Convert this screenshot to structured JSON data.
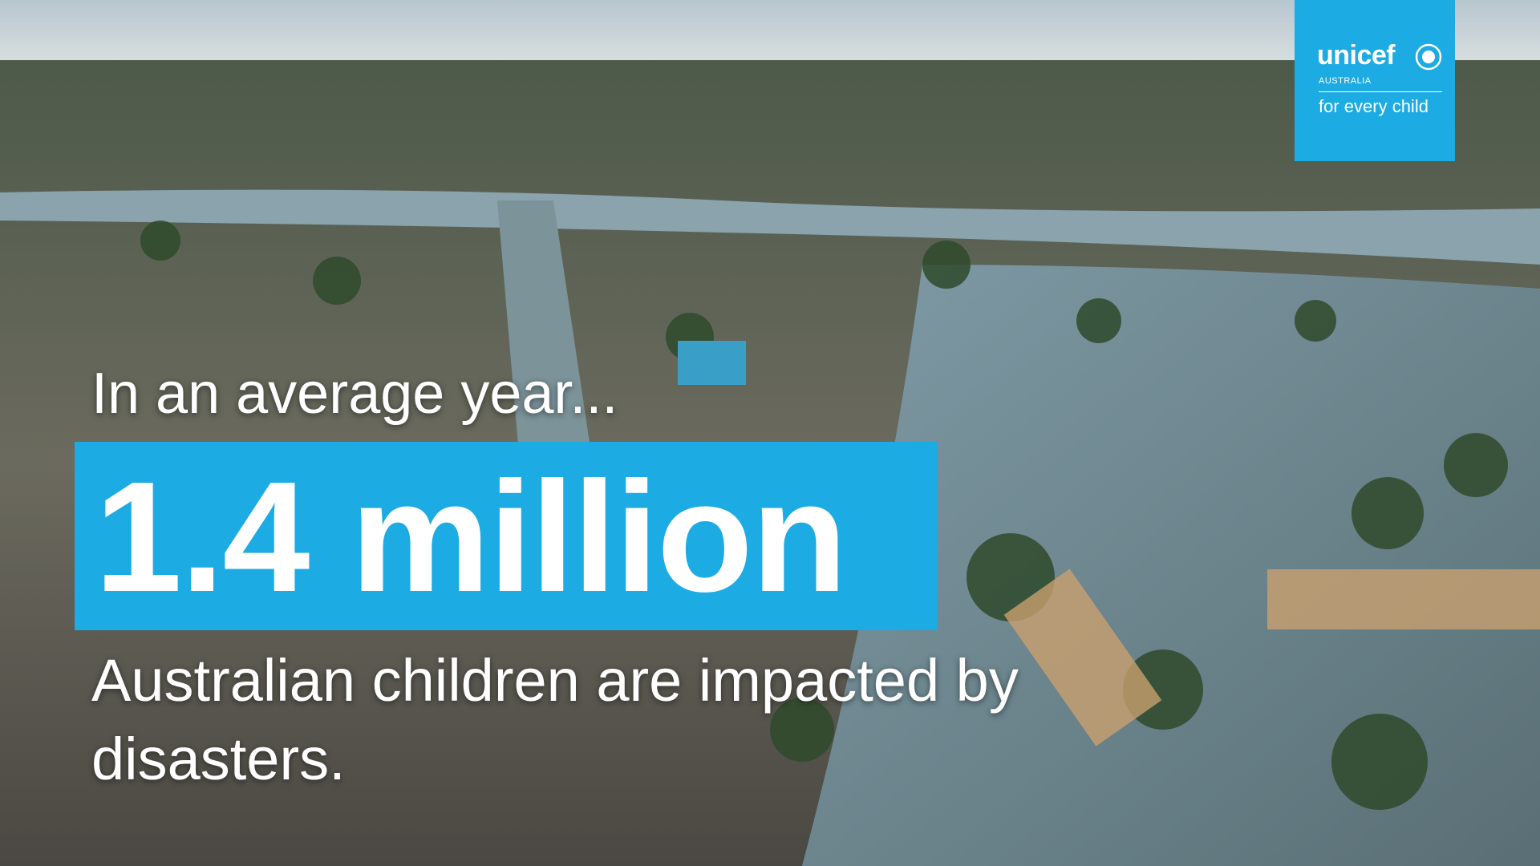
{
  "logo": {
    "brand": "unicef",
    "country": "AUSTRALIA",
    "tagline": "for every child"
  },
  "headline": {
    "intro": "In an average year...",
    "figure": "1.4 million",
    "statement": "Australian children are impacted by disasters."
  }
}
